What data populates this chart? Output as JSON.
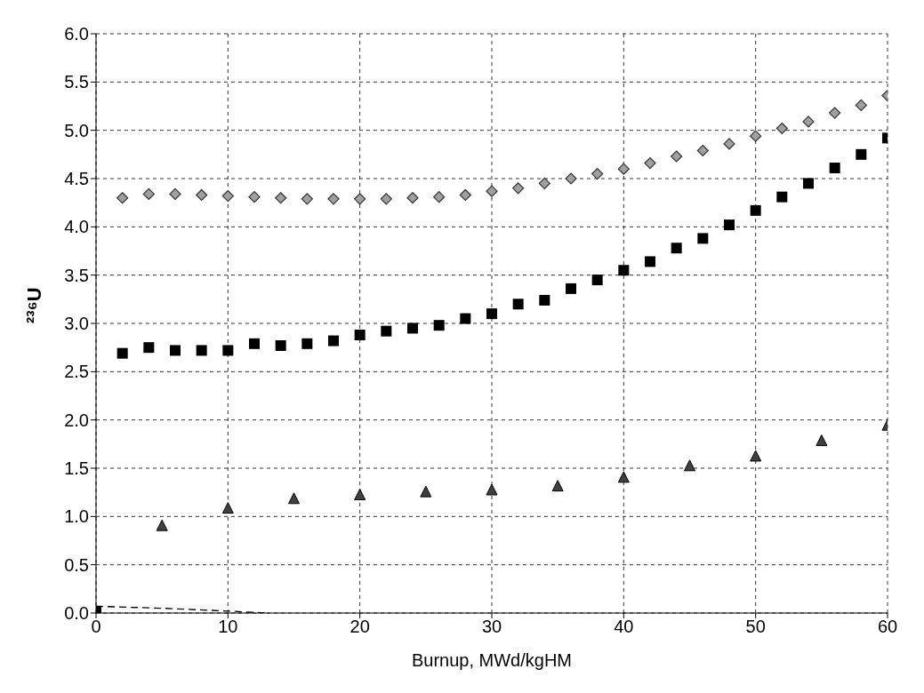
{
  "chart_data": {
    "type": "scatter",
    "xlabel": "Burnup, MWd/kgHM",
    "ylabel": "²³⁶U",
    "xlim": [
      0,
      60
    ],
    "xticks": [
      0,
      10,
      20,
      30,
      40,
      50,
      60
    ],
    "ylim": [
      0,
      6
    ],
    "yticks": [
      {
        "value": 0,
        "label": "0.0"
      },
      {
        "value": 0.5,
        "label": "0.5"
      },
      {
        "value": 1,
        "label": "1.0"
      },
      {
        "value": 1.5,
        "label": "1.5"
      },
      {
        "value": 2,
        "label": "2.0"
      },
      {
        "value": 2.5,
        "label": "2.5"
      },
      {
        "value": 3,
        "label": "3.0"
      },
      {
        "value": 3.5,
        "label": "3.5"
      },
      {
        "value": 4,
        "label": "4.0"
      },
      {
        "value": 4.5,
        "label": "4.5"
      },
      {
        "value": 5,
        "label": "5.0"
      },
      {
        "value": 5.5,
        "label": "5.5"
      },
      {
        "value": 6,
        "label": "6.0"
      }
    ],
    "grid": true,
    "series": [
      {
        "marker": "diamond",
        "color": "#a0a0a0",
        "x": [
          2,
          4,
          6,
          8,
          10,
          12,
          14,
          16,
          18,
          20,
          22,
          24,
          26,
          28,
          30,
          32,
          34,
          36,
          38,
          40,
          42,
          44,
          46,
          48,
          50,
          52,
          54,
          56,
          58,
          60
        ],
        "values": [
          4.3,
          4.34,
          4.34,
          4.33,
          4.32,
          4.31,
          4.3,
          4.29,
          4.29,
          4.29,
          4.29,
          4.3,
          4.31,
          4.33,
          4.37,
          4.4,
          4.45,
          4.5,
          4.55,
          4.6,
          4.66,
          4.73,
          4.79,
          4.86,
          4.94,
          5.02,
          5.09,
          5.18,
          5.26,
          5.36
        ]
      },
      {
        "marker": "square",
        "color": "#000000",
        "x": [
          0,
          2,
          4,
          6,
          8,
          10,
          12,
          14,
          16,
          18,
          20,
          22,
          24,
          26,
          28,
          30,
          32,
          34,
          36,
          38,
          40,
          42,
          44,
          46,
          48,
          50,
          52,
          54,
          56,
          58,
          60
        ],
        "values": [
          0.02,
          2.69,
          2.75,
          2.72,
          2.72,
          2.72,
          2.79,
          2.77,
          2.79,
          2.82,
          2.88,
          2.92,
          2.95,
          2.98,
          3.05,
          3.1,
          3.2,
          3.24,
          3.36,
          3.45,
          3.55,
          3.64,
          3.78,
          3.88,
          4.02,
          4.17,
          4.31,
          4.45,
          4.61,
          4.75,
          4.92
        ]
      },
      {
        "marker": "triangle",
        "color": "#404040",
        "x": [
          5,
          10,
          15,
          20,
          25,
          30,
          35,
          40,
          45,
          50,
          55,
          60
        ],
        "values": [
          0.9,
          1.08,
          1.18,
          1.22,
          1.25,
          1.27,
          1.31,
          1.4,
          1.52,
          1.62,
          1.78,
          1.94
        ]
      },
      {
        "type": "line",
        "line_style": "dashed",
        "color": "#000000",
        "x": [
          0,
          5,
          10,
          13
        ],
        "values": [
          0.07,
          0.05,
          0.02,
          0
        ]
      }
    ]
  }
}
